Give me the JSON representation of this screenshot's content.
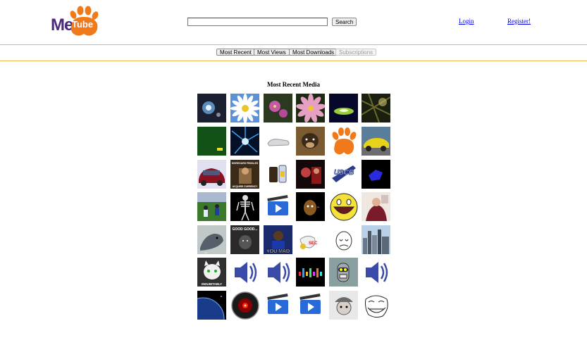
{
  "header": {
    "logo_me": "Me",
    "logo_tube": "Tube",
    "search_placeholder": "",
    "search_button": "Search",
    "login": "Login",
    "register": "Register!"
  },
  "nav": {
    "items": [
      "Most Recent",
      "Most Views",
      "Most Downloads",
      "Subscriptions"
    ],
    "disabled": "Subscriptions"
  },
  "main": {
    "title": "Most Recent Media",
    "thumbs": [
      [
        "space-glow",
        "daisy",
        "pink-flowers",
        "pink-flower",
        "blue-tunnel",
        "tree-branches"
      ],
      [
        "green-screen",
        "blue-burst",
        "white-shoe",
        "dog",
        "clemson-paw",
        "yellow-car"
      ],
      [
        "red-car",
        "disregard-females",
        "drinks",
        "poster",
        "uscb-logo",
        "blue-shape"
      ],
      [
        "football",
        "skeleton",
        "video-clip",
        "dog-black",
        "awesome-face",
        "woman-portrait"
      ],
      [
        "seal",
        "good-good-meme",
        "you-mad-meme",
        "sec-cartoon",
        "forever-alone",
        "city-skyline"
      ],
      [
        "cat-indubitably",
        "music-note",
        "music-note",
        "equalizer",
        "bender",
        "music-note"
      ],
      [
        "earth-space",
        "hal-eye",
        "video-clip",
        "video-clip",
        "hat-face",
        "trollface"
      ]
    ],
    "meme_texts": {
      "good": "GOOD GOOD...",
      "mad": "YOU MAD",
      "cat": "INDUBITABLY",
      "disregard": "DISREGARD FEMALES",
      "currency": "ACQUIRE CURRENCY",
      "sec": "SEC",
      "uscb": "USCB"
    }
  }
}
